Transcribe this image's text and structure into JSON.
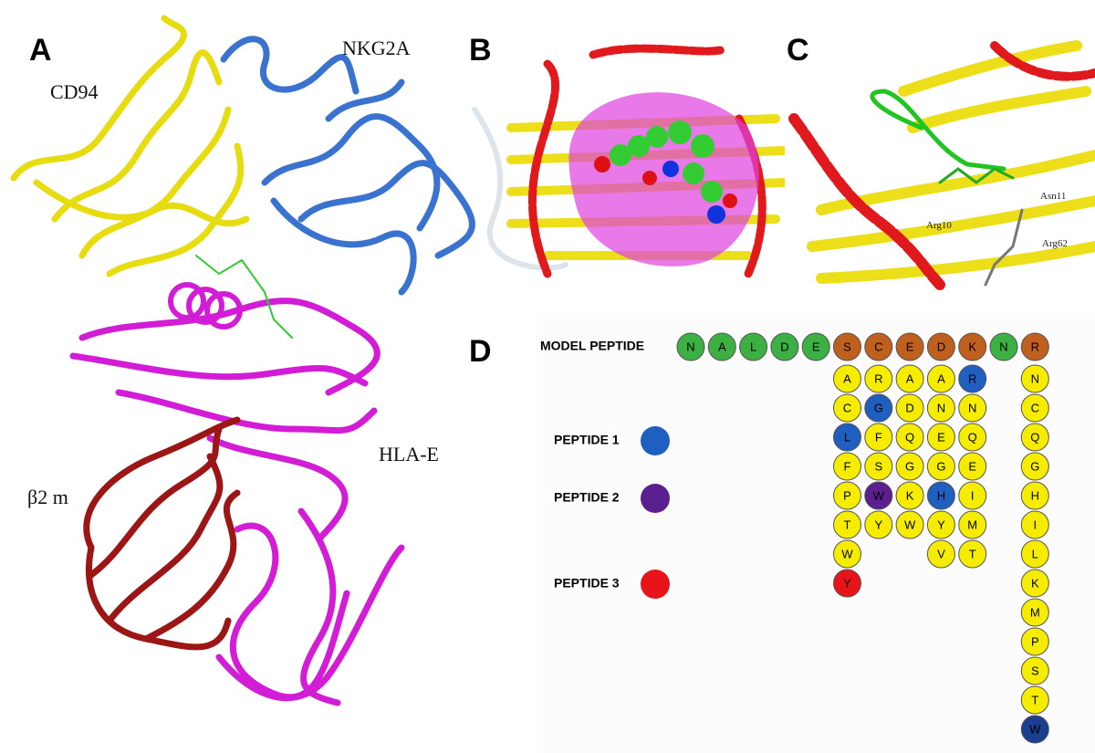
{
  "panel_labels": [
    "A",
    "B",
    "C",
    "D"
  ],
  "structure_labels": [
    "CD94",
    "NKG2A",
    "HLA-E",
    "β2 m"
  ],
  "residue_labels": [
    "Asn11",
    "Arg10",
    "Arg62"
  ],
  "peptide_chart": {
    "model_label": "MODEL PEPTIDE",
    "legend": [
      {
        "name": "PEPTIDE 1",
        "color": "#1f5fbf"
      },
      {
        "name": "PEPTIDE 2",
        "color": "#5b1f8f"
      },
      {
        "name": "PEPTIDE 3",
        "color": "#e8141a"
      }
    ],
    "model": [
      {
        "residue": "N",
        "color": "#3cb043",
        "substitutions": []
      },
      {
        "residue": "A",
        "color": "#3cb043",
        "substitutions": []
      },
      {
        "residue": "L",
        "color": "#3cb043",
        "substitutions": []
      },
      {
        "residue": "D",
        "color": "#3cb043",
        "substitutions": []
      },
      {
        "residue": "E",
        "color": "#3cb043",
        "substitutions": []
      },
      {
        "residue": "S",
        "color": "#c0601f",
        "substitutions": [
          {
            "residue": "A",
            "color": "#f5ec00"
          },
          {
            "residue": "C",
            "color": "#f5ec00"
          },
          {
            "residue": "L",
            "color": "#1f5fbf"
          },
          {
            "residue": "F",
            "color": "#f5ec00"
          },
          {
            "residue": "P",
            "color": "#f5ec00"
          },
          {
            "residue": "T",
            "color": "#f5ec00"
          },
          {
            "residue": "W",
            "color": "#f5ec00"
          },
          {
            "residue": "Y",
            "color": "#e8141a"
          }
        ]
      },
      {
        "residue": "C",
        "color": "#c0601f",
        "substitutions": [
          {
            "residue": "R",
            "color": "#f5ec00"
          },
          {
            "residue": "G",
            "color": "#1f5fbf"
          },
          {
            "residue": "F",
            "color": "#f5ec00"
          },
          {
            "residue": "S",
            "color": "#f5ec00"
          },
          {
            "residue": "W",
            "color": "#5b1f8f"
          },
          {
            "residue": "Y",
            "color": "#f5ec00"
          }
        ]
      },
      {
        "residue": "E",
        "color": "#c0601f",
        "substitutions": [
          {
            "residue": "A",
            "color": "#f5ec00"
          },
          {
            "residue": "D",
            "color": "#f5ec00"
          },
          {
            "residue": "Q",
            "color": "#f5ec00"
          },
          {
            "residue": "G",
            "color": "#f5ec00"
          },
          {
            "residue": "K",
            "color": "#f5ec00"
          },
          {
            "residue": "W",
            "color": "#f5ec00"
          }
        ]
      },
      {
        "residue": "D",
        "color": "#c0601f",
        "substitutions": [
          {
            "residue": "A",
            "color": "#f5ec00"
          },
          {
            "residue": "N",
            "color": "#f5ec00"
          },
          {
            "residue": "E",
            "color": "#f5ec00"
          },
          {
            "residue": "G",
            "color": "#f5ec00"
          },
          {
            "residue": "H",
            "color": "#1f5fbf"
          },
          {
            "residue": "Y",
            "color": "#f5ec00"
          },
          {
            "residue": "V",
            "color": "#f5ec00"
          }
        ]
      },
      {
        "residue": "K",
        "color": "#c0601f",
        "substitutions": [
          {
            "residue": "R",
            "color": "#1f5fbf"
          },
          {
            "residue": "N",
            "color": "#f5ec00"
          },
          {
            "residue": "Q",
            "color": "#f5ec00"
          },
          {
            "residue": "E",
            "color": "#f5ec00"
          },
          {
            "residue": "I",
            "color": "#f5ec00"
          },
          {
            "residue": "M",
            "color": "#f5ec00"
          },
          {
            "residue": "T",
            "color": "#f5ec00"
          }
        ]
      },
      {
        "residue": "N",
        "color": "#3cb043",
        "substitutions": []
      },
      {
        "residue": "R",
        "color": "#c0601f",
        "substitutions": [
          {
            "residue": "N",
            "color": "#f5ec00"
          },
          {
            "residue": "C",
            "color": "#f5ec00"
          },
          {
            "residue": "Q",
            "color": "#f5ec00"
          },
          {
            "residue": "G",
            "color": "#f5ec00"
          },
          {
            "residue": "H",
            "color": "#f5ec00"
          },
          {
            "residue": "I",
            "color": "#f5ec00"
          },
          {
            "residue": "L",
            "color": "#f5ec00"
          },
          {
            "residue": "K",
            "color": "#f5ec00"
          },
          {
            "residue": "M",
            "color": "#f5ec00"
          },
          {
            "residue": "P",
            "color": "#f5ec00"
          },
          {
            "residue": "S",
            "color": "#f5ec00"
          },
          {
            "residue": "T",
            "color": "#f5ec00"
          },
          {
            "residue": "W",
            "color": "#1a3f8f"
          }
        ]
      }
    ]
  }
}
